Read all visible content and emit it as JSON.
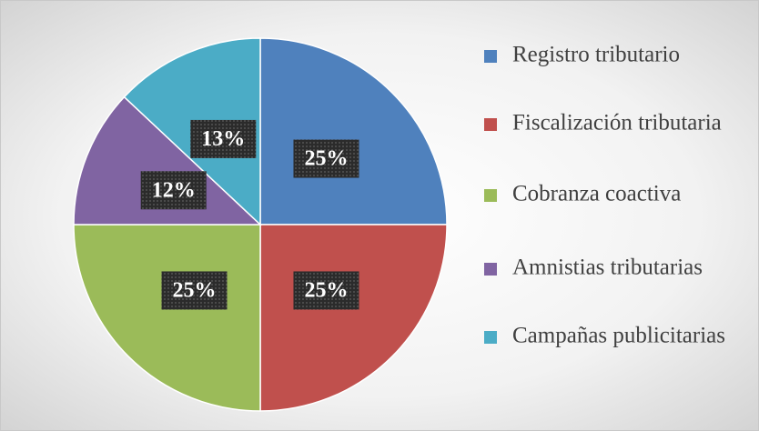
{
  "chart_data": {
    "type": "pie",
    "categories": [
      "Registro tributario",
      "Fiscalización tributaria",
      "Cobranza coactiva",
      "Amnistias tributarias",
      "Campañas publicitarias"
    ],
    "values": [
      25,
      25,
      25,
      12,
      13
    ],
    "value_labels": [
      "25%",
      "25%",
      "25%",
      "12%",
      "13%"
    ],
    "colors": [
      "#4f81bd",
      "#c0504d",
      "#9bbb59",
      "#8064a2",
      "#4bacc6"
    ],
    "legend": "right"
  }
}
